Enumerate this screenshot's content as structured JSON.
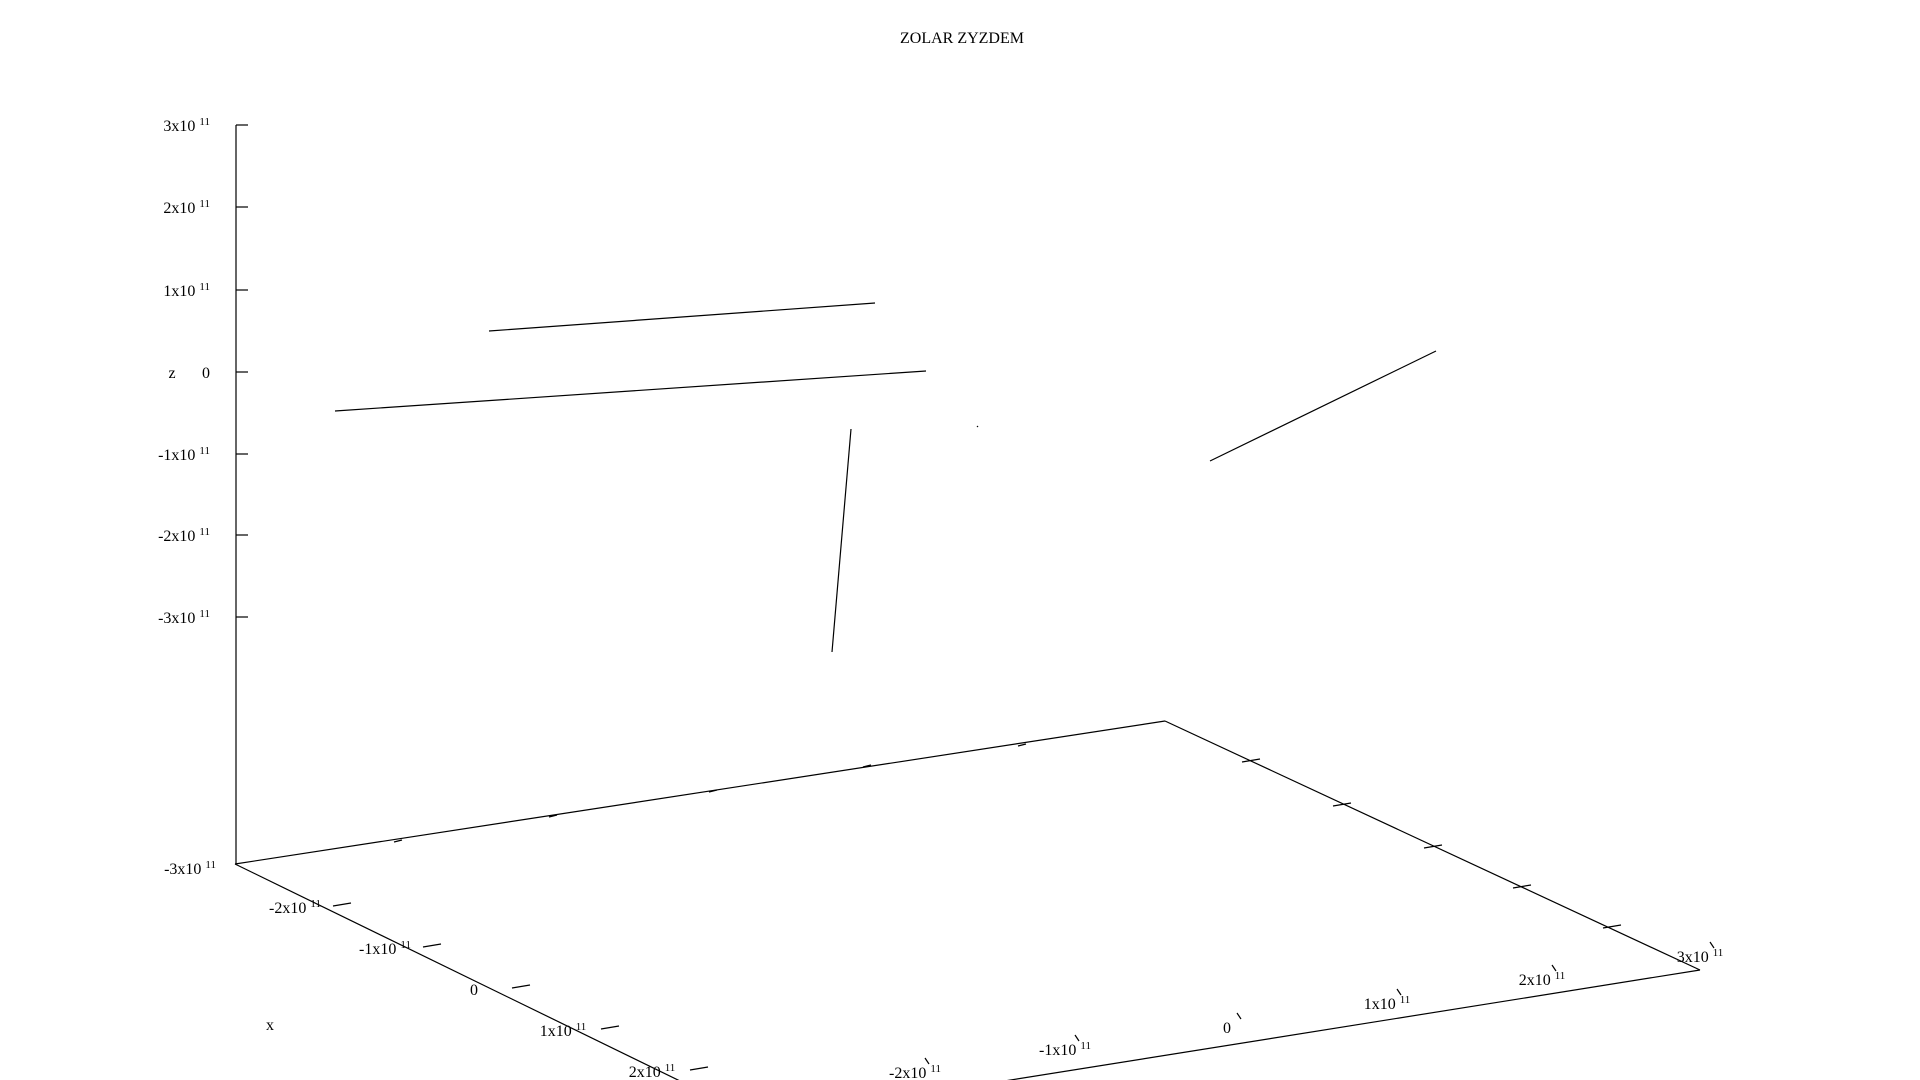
{
  "chart_data": {
    "type": "line",
    "title": "ZOLAR ZYZDEM",
    "axes": {
      "x": {
        "label": "x",
        "range": [
          -300000000000.0,
          300000000000.0
        ],
        "ticks": [
          "-2x10",
          "-1x10",
          "0",
          "1x10",
          "2x10"
        ],
        "tick_exponents": [
          "11",
          "11",
          "",
          "11",
          "11"
        ]
      },
      "y": {
        "label": "",
        "range": [
          -300000000000.0,
          300000000000.0
        ],
        "ticks": [
          "-2x10",
          "-1x10",
          "0",
          "1x10",
          "2x10",
          "3x10"
        ],
        "tick_exponents": [
          "11",
          "11",
          "",
          "11",
          "11",
          "11"
        ]
      },
      "z": {
        "label": "z",
        "range": [
          -300000000000.0,
          300000000000.0
        ],
        "ticks": [
          "-3x10",
          "-2x10",
          "-1x10",
          "0",
          "1x10",
          "2x10",
          "3x10"
        ],
        "tick_exponents": [
          "11",
          "11",
          "11",
          "",
          "11",
          "11",
          "11"
        ]
      },
      "z_floor_label": {
        "text": "-3x10",
        "exponent": "11"
      }
    },
    "grid": false,
    "legend": "none",
    "series": [
      {
        "values": []
      },
      {
        "values": []
      },
      {
        "values": []
      },
      {
        "values": []
      },
      {
        "values": []
      }
    ]
  }
}
